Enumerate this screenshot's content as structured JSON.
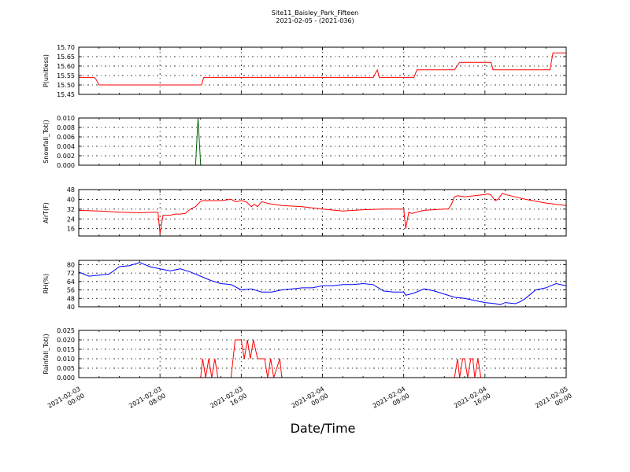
{
  "figure": {
    "title": "Site11_Baisley_Park_Fifteen",
    "subtitle": "2021-02-05 - (2021-036)",
    "xlabel": "Date/Time",
    "xticks": [
      {
        "t": 0,
        "line1": "2021-02-03",
        "line2": "00:00"
      },
      {
        "t": 8,
        "line1": "2021-02-03",
        "line2": "08:00"
      },
      {
        "t": 16,
        "line1": "2021-02-03",
        "line2": "16:00"
      },
      {
        "t": 24,
        "line1": "2021-02-04",
        "line2": "00:00"
      },
      {
        "t": 32,
        "line1": "2021-02-04",
        "line2": "08:00"
      },
      {
        "t": 40,
        "line1": "2021-02-04",
        "line2": "16:00"
      },
      {
        "t": 48,
        "line1": "2021-02-05",
        "line2": "00:00"
      }
    ]
  },
  "chart_data": [
    {
      "type": "line",
      "ylabel": "P(unitless)",
      "ylim": [
        15.45,
        15.7
      ],
      "yticks": [
        "15.45",
        "15.50",
        "15.55",
        "15.60",
        "15.65",
        "15.70"
      ],
      "grid": true,
      "color": "#ff0000",
      "x_unit": "hours since 2021-02-03 00:00",
      "x": [
        0,
        1.5,
        1.7,
        2.0,
        4,
        8,
        10,
        12.1,
        12.3,
        14,
        20,
        29,
        29.4,
        29.6,
        31,
        32,
        33,
        33.3,
        34,
        37,
        37.5,
        37.7,
        40,
        40.6,
        40.8,
        42,
        46,
        46.4,
        46.7,
        47.5,
        48
      ],
      "y": [
        15.54,
        15.54,
        15.53,
        15.5,
        15.5,
        15.5,
        15.5,
        15.5,
        15.54,
        15.54,
        15.54,
        15.54,
        15.58,
        15.54,
        15.54,
        15.54,
        15.54,
        15.58,
        15.58,
        15.58,
        15.62,
        15.62,
        15.62,
        15.62,
        15.58,
        15.58,
        15.58,
        15.58,
        15.67,
        15.67,
        15.67
      ]
    },
    {
      "type": "line",
      "ylabel": "Snowfall_Tot()",
      "ylim": [
        0.0,
        0.01
      ],
      "yticks": [
        "0.000",
        "0.002",
        "0.004",
        "0.006",
        "0.008",
        "0.010"
      ],
      "grid": true,
      "color": "#006400",
      "x_unit": "hours since 2021-02-03 00:00",
      "x": [
        0,
        11.5,
        11.75,
        12.0,
        48
      ],
      "y": [
        0,
        0,
        0.01,
        0,
        0
      ]
    },
    {
      "type": "line",
      "ylabel": "AirT(F)",
      "ylim": [
        10,
        48
      ],
      "yticks": [
        "16",
        "24",
        "32",
        "40",
        "48"
      ],
      "grid": true,
      "color": "#ff0000",
      "x_unit": "hours since 2021-02-03 00:00",
      "x": [
        0,
        2,
        4,
        6,
        7.5,
        7.8,
        8.0,
        8.3,
        9,
        9.5,
        10,
        10.5,
        11,
        11.5,
        12,
        12.3,
        13,
        14,
        15,
        15.5,
        16,
        16.5,
        17,
        17.3,
        17.6,
        18,
        18.3,
        18.7,
        20,
        22,
        24,
        26,
        28,
        30,
        32,
        32.2,
        32.5,
        32.8,
        33.5,
        34,
        36,
        36.4,
        36.7,
        37,
        37.3,
        38,
        39,
        40,
        40.3,
        40.6,
        41,
        41.3,
        41.7,
        42,
        43,
        44,
        46,
        48
      ],
      "y": [
        31,
        30.5,
        29.5,
        29,
        29.5,
        29.5,
        12,
        27,
        27,
        28,
        28,
        28.5,
        32,
        34,
        38.5,
        39,
        39,
        39,
        40,
        38,
        39,
        38,
        34,
        36,
        34,
        38,
        37.5,
        36.5,
        35,
        34,
        32,
        30.5,
        31.5,
        32,
        32,
        16,
        29.5,
        28.5,
        30,
        31,
        32,
        32,
        36,
        42,
        43,
        42,
        43,
        44,
        44.5,
        43.5,
        39,
        40,
        45,
        44,
        42,
        40,
        37,
        35
      ]
    },
    {
      "type": "line",
      "ylabel": "RH(%)",
      "ylim": [
        40,
        84
      ],
      "yticks": [
        "40",
        "48",
        "56",
        "64",
        "72",
        "80"
      ],
      "grid": true,
      "color": "#0000ff",
      "x_unit": "hours since 2021-02-03 00:00",
      "x": [
        0,
        1,
        2,
        3,
        4,
        5,
        6,
        7,
        8,
        9,
        10,
        11,
        12,
        13,
        14,
        15,
        16,
        17,
        18,
        19,
        20,
        21,
        22,
        23,
        24,
        25,
        26,
        27,
        28,
        29,
        30,
        31,
        32,
        32.2,
        33,
        34,
        35,
        36,
        37,
        38,
        39,
        40,
        41,
        41.5,
        42,
        43,
        43.5,
        44,
        45,
        46,
        47,
        48
      ],
      "y": [
        73,
        69,
        70,
        71,
        78,
        79,
        82,
        78,
        76,
        74,
        76,
        73,
        69,
        65,
        62,
        61,
        56,
        57,
        54,
        54,
        56,
        57,
        58,
        58,
        60,
        60,
        61,
        61,
        62,
        61,
        55,
        54,
        54,
        51,
        53,
        57,
        55,
        52,
        49,
        48,
        46,
        44,
        43,
        42,
        44,
        43,
        45,
        48,
        56,
        58,
        62,
        60
      ]
    },
    {
      "type": "line",
      "ylabel": "Rainfall_Tot()",
      "ylim": [
        0,
        0.025
      ],
      "yticks": [
        "0.000",
        "0.005",
        "0.010",
        "0.015",
        "0.020",
        "0.025"
      ],
      "grid": true,
      "color": "#ff0000",
      "x_unit": "hours since 2021-02-03 00:00",
      "x": [
        0,
        12,
        12.2,
        12.5,
        12.8,
        13.1,
        13.4,
        13.7,
        15,
        15.4,
        15.6,
        16.0,
        16.3,
        16.6,
        16.9,
        17.2,
        17.6,
        18.0,
        18.3,
        18.6,
        18.9,
        19.2,
        19.8,
        20.0,
        20.2,
        37,
        37.3,
        37.5,
        37.8,
        38.0,
        38.3,
        38.6,
        38.8,
        39.0,
        39.3,
        39.6,
        48
      ],
      "y": [
        0,
        0,
        0.01,
        0,
        0.01,
        0,
        0.01,
        0,
        0,
        0.02,
        0.02,
        0.02,
        0.01,
        0.02,
        0.01,
        0.02,
        0.01,
        0.01,
        0.01,
        0,
        0.01,
        0,
        0.01,
        0,
        0,
        0,
        0.01,
        0,
        0.01,
        0.01,
        0,
        0.01,
        0.01,
        0,
        0.01,
        0,
        0
      ]
    }
  ]
}
